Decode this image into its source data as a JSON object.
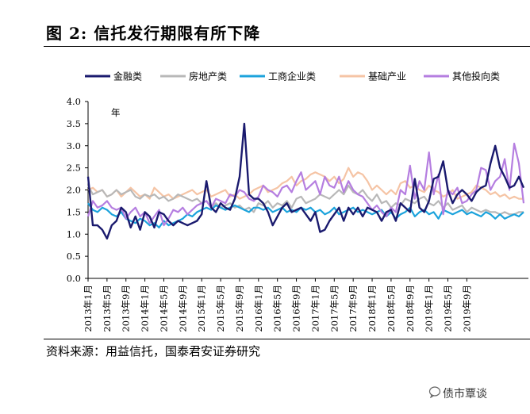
{
  "figure": {
    "title": "图 2: 信托发行期限有所下降",
    "source": "资料来源：用益信托，国泰君安证券研究",
    "watermark": "债市覃谈"
  },
  "chart_data": {
    "type": "line",
    "unit_label": "年",
    "y_ticks": [
      "4.0",
      "3.5",
      "3.0",
      "2.5",
      "2.0",
      "1.5",
      "1.0",
      "0.5",
      "0.0"
    ],
    "ylim": [
      0,
      4.0
    ],
    "x_ticks": [
      "2013年1月",
      "2013年5月",
      "2013年9月",
      "2014年1月",
      "2014年5月",
      "2014年9月",
      "2015年1月",
      "2015年5月",
      "2015年9月",
      "2016年1月",
      "2016年5月",
      "2016年9月",
      "2017年1月",
      "2017年5月",
      "2017年9月",
      "2018年1月",
      "2018年5月",
      "2018年9月",
      "2019年1月",
      "2019年5月",
      "2019年9月"
    ],
    "x_start": "2013-01",
    "x_end": "2019-10",
    "legend_position": "top",
    "series": [
      {
        "name": "金融类",
        "color": "#1a1a6e",
        "values": [
          2.3,
          1.2,
          1.2,
          1.1,
          0.9,
          1.2,
          1.3,
          1.6,
          1.5,
          1.15,
          1.4,
          1.1,
          1.5,
          1.4,
          1.15,
          1.5,
          1.45,
          1.3,
          1.2,
          1.3,
          1.25,
          1.2,
          1.25,
          1.3,
          1.45,
          2.2,
          1.6,
          1.5,
          1.7,
          1.6,
          1.55,
          1.8,
          2.3,
          3.5,
          1.9,
          1.8,
          1.8,
          1.7,
          1.5,
          1.2,
          1.4,
          1.6,
          1.7,
          1.5,
          1.55,
          1.6,
          1.45,
          1.3,
          1.5,
          1.05,
          1.1,
          1.3,
          1.45,
          1.6,
          1.3,
          1.6,
          1.45,
          1.6,
          1.4,
          1.6,
          1.55,
          1.5,
          1.3,
          1.5,
          1.55,
          1.3,
          1.7,
          1.6,
          1.5,
          2.25,
          1.6,
          1.5,
          1.75,
          2.25,
          2.3,
          2.65,
          2.0,
          1.7,
          1.9,
          2.0,
          1.9,
          1.75,
          1.95,
          2.05,
          2.1,
          2.6,
          3.0,
          2.5,
          2.3,
          2.05,
          2.1,
          2.3,
          2.05
        ]
      },
      {
        "name": "房地产类",
        "color": "#b8b8b8",
        "values": [
          2.1,
          1.9,
          1.95,
          2.0,
          1.85,
          1.9,
          2.0,
          1.9,
          1.95,
          2.0,
          1.85,
          1.8,
          1.9,
          1.85,
          1.9,
          1.8,
          1.85,
          1.75,
          1.8,
          1.9,
          1.85,
          1.8,
          1.75,
          1.8,
          1.7,
          1.75,
          1.6,
          1.7,
          1.6,
          1.65,
          1.7,
          1.6,
          1.65,
          1.55,
          1.6,
          1.5,
          1.7,
          1.65,
          1.75,
          1.6,
          1.7,
          1.65,
          1.75,
          1.6,
          1.8,
          1.85,
          1.7,
          1.75,
          1.8,
          1.9,
          1.85,
          1.8,
          1.9,
          2.0,
          1.9,
          2.1,
          1.95,
          1.9,
          2.0,
          1.85,
          1.75,
          1.9,
          1.7,
          1.75,
          1.6,
          1.7,
          1.65,
          1.8,
          1.75,
          1.7,
          1.8,
          1.85,
          1.7,
          1.65,
          1.75,
          1.6,
          1.7,
          1.55,
          1.6,
          1.65,
          1.5,
          1.6,
          1.55,
          1.5,
          1.55,
          1.5,
          1.5,
          1.45,
          1.5,
          1.45,
          1.45,
          1.5,
          1.5
        ]
      },
      {
        "name": "工商企业类",
        "color": "#1ca3dc",
        "values": [
          1.7,
          1.55,
          1.5,
          1.6,
          1.55,
          1.45,
          1.4,
          1.5,
          1.35,
          1.3,
          1.25,
          1.35,
          1.3,
          1.2,
          1.25,
          1.15,
          1.3,
          1.2,
          1.25,
          1.3,
          1.35,
          1.45,
          1.4,
          1.5,
          1.55,
          1.6,
          1.55,
          1.65,
          1.6,
          1.55,
          1.6,
          1.65,
          1.6,
          1.55,
          1.5,
          1.6,
          1.6,
          1.55,
          1.6,
          1.5,
          1.55,
          1.6,
          1.5,
          1.55,
          1.5,
          1.6,
          1.55,
          1.6,
          1.5,
          1.55,
          1.45,
          1.5,
          1.6,
          1.45,
          1.5,
          1.55,
          1.6,
          1.5,
          1.55,
          1.5,
          1.45,
          1.5,
          1.55,
          1.4,
          1.5,
          1.35,
          1.45,
          1.5,
          1.6,
          1.4,
          1.5,
          1.55,
          1.45,
          1.5,
          1.35,
          1.55,
          1.5,
          1.45,
          1.5,
          1.55,
          1.45,
          1.5,
          1.45,
          1.4,
          1.5,
          1.45,
          1.35,
          1.45,
          1.35,
          1.4,
          1.45,
          1.4,
          1.5
        ]
      },
      {
        "name": "基础产业",
        "color": "#f5c4a5",
        "values": [
          2.0,
          2.05,
          1.95,
          2.0,
          1.85,
          1.9,
          2.0,
          1.85,
          1.95,
          2.05,
          1.95,
          1.85,
          1.9,
          1.8,
          2.05,
          1.95,
          1.85,
          1.9,
          1.8,
          1.85,
          1.9,
          1.95,
          2.0,
          1.9,
          1.95,
          2.0,
          1.85,
          1.9,
          1.95,
          2.0,
          1.85,
          1.9,
          1.8,
          1.85,
          1.9,
          2.0,
          2.05,
          2.1,
          1.95,
          2.0,
          2.05,
          2.15,
          2.2,
          2.3,
          2.1,
          2.2,
          2.25,
          2.35,
          2.4,
          2.35,
          2.3,
          2.2,
          2.3,
          2.15,
          2.25,
          2.5,
          2.3,
          2.4,
          2.35,
          2.2,
          2.0,
          2.1,
          2.0,
          1.9,
          2.0,
          1.9,
          2.15,
          2.2,
          2.05,
          2.1,
          2.0,
          1.95,
          2.1,
          2.0,
          1.95,
          1.85,
          1.9,
          2.0,
          1.8,
          1.85,
          1.9,
          1.95,
          2.1,
          2.05,
          2.0,
          1.9,
          1.95,
          1.85,
          1.9,
          1.8,
          1.85,
          1.8,
          1.8
        ]
      },
      {
        "name": "其他投向类",
        "color": "#b57ee0",
        "values": [
          1.4,
          1.75,
          1.6,
          1.65,
          1.75,
          1.6,
          1.55,
          1.6,
          1.35,
          1.5,
          1.6,
          1.4,
          1.5,
          1.25,
          1.4,
          1.55,
          1.2,
          1.35,
          1.55,
          1.5,
          1.6,
          1.45,
          1.55,
          1.65,
          1.7,
          1.75,
          1.6,
          1.8,
          1.75,
          1.7,
          1.9,
          1.85,
          2.0,
          1.95,
          1.8,
          1.75,
          1.85,
          2.1,
          2.0,
          1.95,
          1.85,
          2.05,
          2.1,
          1.95,
          2.2,
          2.4,
          2.0,
          2.1,
          2.2,
          1.9,
          2.3,
          2.1,
          2.05,
          2.3,
          1.95,
          2.2,
          2.0,
          1.9,
          1.85,
          1.7,
          1.55,
          1.65,
          1.5,
          1.4,
          1.6,
          1.5,
          2.0,
          1.9,
          2.55,
          1.8,
          2.2,
          2.0,
          2.85,
          1.9,
          2.35,
          1.45,
          2.0,
          1.9,
          2.05,
          1.7,
          1.75,
          1.9,
          2.0,
          2.5,
          2.45,
          2.0,
          2.2,
          2.3,
          2.7,
          2.0,
          3.05,
          2.6,
          1.7
        ]
      }
    ]
  }
}
